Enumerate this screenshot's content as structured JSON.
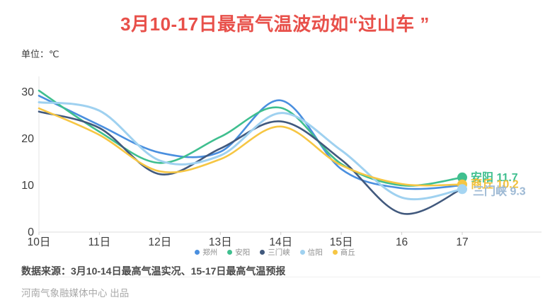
{
  "title": {
    "text": "3月10-17日最高气温波动如“过山车 ”",
    "color": "#e8504a"
  },
  "unit_label": "单位：℃",
  "chart_data": {
    "type": "line",
    "smooth": true,
    "categories": [
      "10日",
      "11日",
      "12日",
      "13日",
      "14日",
      "15日",
      "16",
      "17"
    ],
    "series": [
      {
        "name": "郑州",
        "color": "#4a8fdf",
        "values": [
          29.2,
          22.9,
          17.0,
          17.2,
          28.2,
          13.5,
          9.4,
          10.0
        ]
      },
      {
        "name": "安阳",
        "color": "#3fbf8f",
        "values": [
          30.3,
          21.5,
          14.8,
          20.4,
          26.6,
          14.6,
          10.0,
          11.7
        ]
      },
      {
        "name": "三门峡",
        "color": "#41597d",
        "values": [
          25.8,
          22.3,
          12.4,
          17.9,
          23.7,
          15.5,
          4.0,
          9.3
        ]
      },
      {
        "name": "信阳",
        "color": "#9fd1f0",
        "values": [
          27.8,
          26.0,
          15.3,
          16.4,
          25.5,
          17.5,
          7.4,
          9.2
        ]
      },
      {
        "name": "商丘",
        "color": "#f6c643",
        "values": [
          26.5,
          20.8,
          13.0,
          15.6,
          22.6,
          14.3,
          10.3,
          10.2
        ]
      }
    ],
    "ylim": [
      0,
      32
    ],
    "yticks": [
      0,
      10,
      20,
      30
    ],
    "grid": false,
    "legend_position": "bottom",
    "end_labels": [
      {
        "text": "安阳 11.7",
        "color": "#3fbf8f",
        "value": 11.7
      },
      {
        "text": "商丘 10.2",
        "color": "#f0c03a",
        "value": 10.2
      },
      {
        "text": "三门峡 9.3",
        "color": "#9db9d4",
        "value": 9.3
      }
    ],
    "end_dots": [
      {
        "color": "#3fbf8f",
        "value": 11.7
      },
      {
        "color": "#f6c643",
        "value": 10.2
      },
      {
        "color": "#a5d5f2",
        "value": 9.2
      }
    ]
  },
  "footer": {
    "source": "数据来源：3月10-14日最高气温实况、15-17日最高气温预报",
    "producer": "河南气象融媒体中心 出品"
  }
}
